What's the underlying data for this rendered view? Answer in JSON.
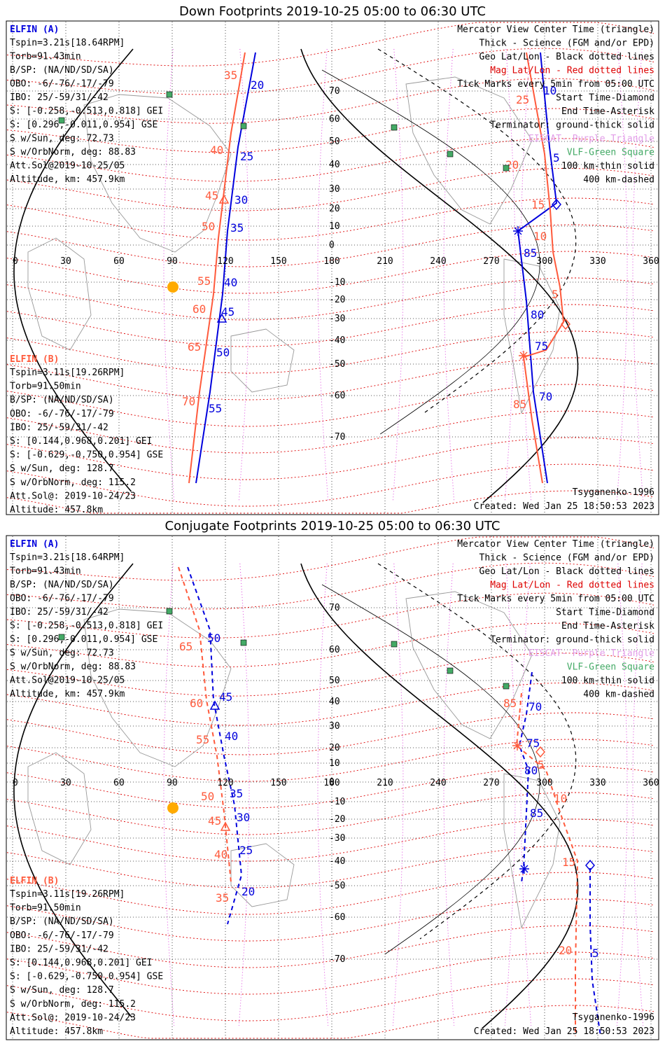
{
  "colors": {
    "elfin_a": "#0000dd",
    "elfin_b": "#ff5a3c",
    "mag_grid": "#dd0000",
    "geo_grid": "#000000",
    "meridian_purple": "#dd44dd",
    "vlf_green": "#44aa66",
    "sun": "#ffaa00"
  },
  "map": {
    "lon_ticks": [
      "0",
      "30",
      "60",
      "90",
      "120",
      "150",
      "180",
      "210",
      "240",
      "270",
      "300",
      "330",
      "360"
    ],
    "lat_ticks": [
      "70",
      "60",
      "50",
      "40",
      "30",
      "20",
      "10",
      "0",
      "-10",
      "-20",
      "-30",
      "-40",
      "-50",
      "-60",
      "-70"
    ]
  },
  "elfin_a_info": {
    "header": "ELFIN (A)",
    "lines": [
      "Tspin=3.21s[18.64RPM]",
      "Torb=91.43min",
      "B/SP: (NA/ND/SD/SA)",
      "OBO: -6/-76/-17/-79",
      "IBO: 25/-59/31/-42",
      "S: [-0.258,-0.513,0.818] GEI",
      "S: [0.296,-0.011,0.954] GSE",
      "S w/Sun, deg: 72.73",
      "S w/OrbNorm, deg: 88.83",
      "Att.Sol@2019-10-25/05",
      "Altitude, km: 457.9km"
    ]
  },
  "elfin_b_info": {
    "header": "ELFIN (B)",
    "lines": [
      "Tspin=3.11s[19.26RPM]",
      "Torb=91.50min",
      "B/SP: (NA/ND/SD/SA)",
      "OBO: -6/-76/-17/-79",
      "IBO: 25/-59/31/-42",
      "S: [0.144,0.968,0.201] GEI",
      "S: [-0.629,-0.750,0.954] GSE",
      "S w/Sun, deg: 128.7",
      "S w/OrbNorm, deg: 115.2",
      "Att.Sol@: 2019-10-24/23",
      "Altitude: 457.8km"
    ]
  },
  "legend": {
    "center_time": "Mercator View Center Time (triangle)",
    "thick": "Thick - Science (FGM and/or EPD)",
    "geo": "Geo Lat/Lon - Black dotted lines",
    "mag": "Mag Lat/Lon - Red dotted lines",
    "ticks": "Tick Marks every 5min from 05:00 UTC",
    "start": "Start Time-Diamond",
    "end": "End Time-Asterisk",
    "terminator": "Terminator: ground-thick solid",
    "eiscat": "EISCAT- Purple Triangle",
    "vlf": "VLF-Green Square",
    "km100": "100 km-thin solid",
    "km400": "400 km-dashed"
  },
  "footer": {
    "model": "Tsyganenko-1996",
    "created": "Created: Wed Jan 25 18:50:53 2023"
  },
  "panel1": {
    "title": "Down Footprints 2019-10-25 05:00 to 06:30 UTC",
    "a_labels": [
      "10",
      "5",
      "85",
      "80",
      "75",
      "70",
      "20",
      "25",
      "30",
      "35",
      "40",
      "45",
      "50",
      "55"
    ],
    "b_labels": [
      "25",
      "20",
      "15",
      "10",
      "5",
      "85",
      "35",
      "40",
      "45",
      "50",
      "55",
      "60",
      "65",
      "70"
    ]
  },
  "panel2": {
    "title": "Conjugate Footprints 2019-10-25 05:00 to 06:30 UTC",
    "a_labels": [
      "70",
      "75",
      "80",
      "85",
      "5",
      "50",
      "45",
      "40",
      "35",
      "30",
      "25",
      "20"
    ],
    "b_labels": [
      "85",
      "5",
      "10",
      "15",
      "20",
      "65",
      "60",
      "55",
      "50",
      "45",
      "40",
      "35"
    ]
  }
}
